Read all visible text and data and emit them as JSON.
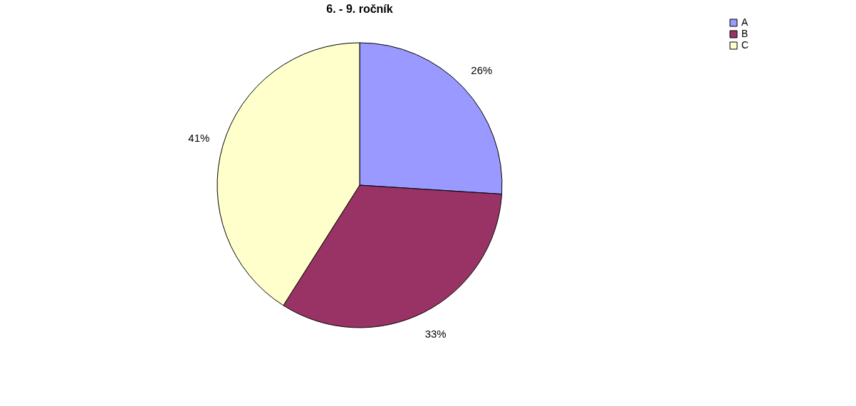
{
  "chart_data": {
    "type": "pie",
    "title": "6. - 9. ročník",
    "categories": [
      "A",
      "B",
      "C"
    ],
    "values": [
      26,
      33,
      41
    ],
    "colors": [
      "#9999ff",
      "#993366",
      "#ffffcc"
    ],
    "value_labels": [
      "26%",
      "33%",
      "41%"
    ],
    "legend": "right"
  }
}
